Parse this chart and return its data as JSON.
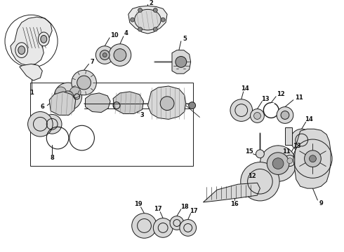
{
  "bg_color": "#ffffff",
  "line_color": "#1a1a1a",
  "fig_width": 4.9,
  "fig_height": 3.6,
  "dpi": 100,
  "parts": {
    "housing_color": "#e8e8e8",
    "part_color": "#d8d8d8",
    "dark_color": "#888888",
    "mid_color": "#c0c0c0"
  }
}
